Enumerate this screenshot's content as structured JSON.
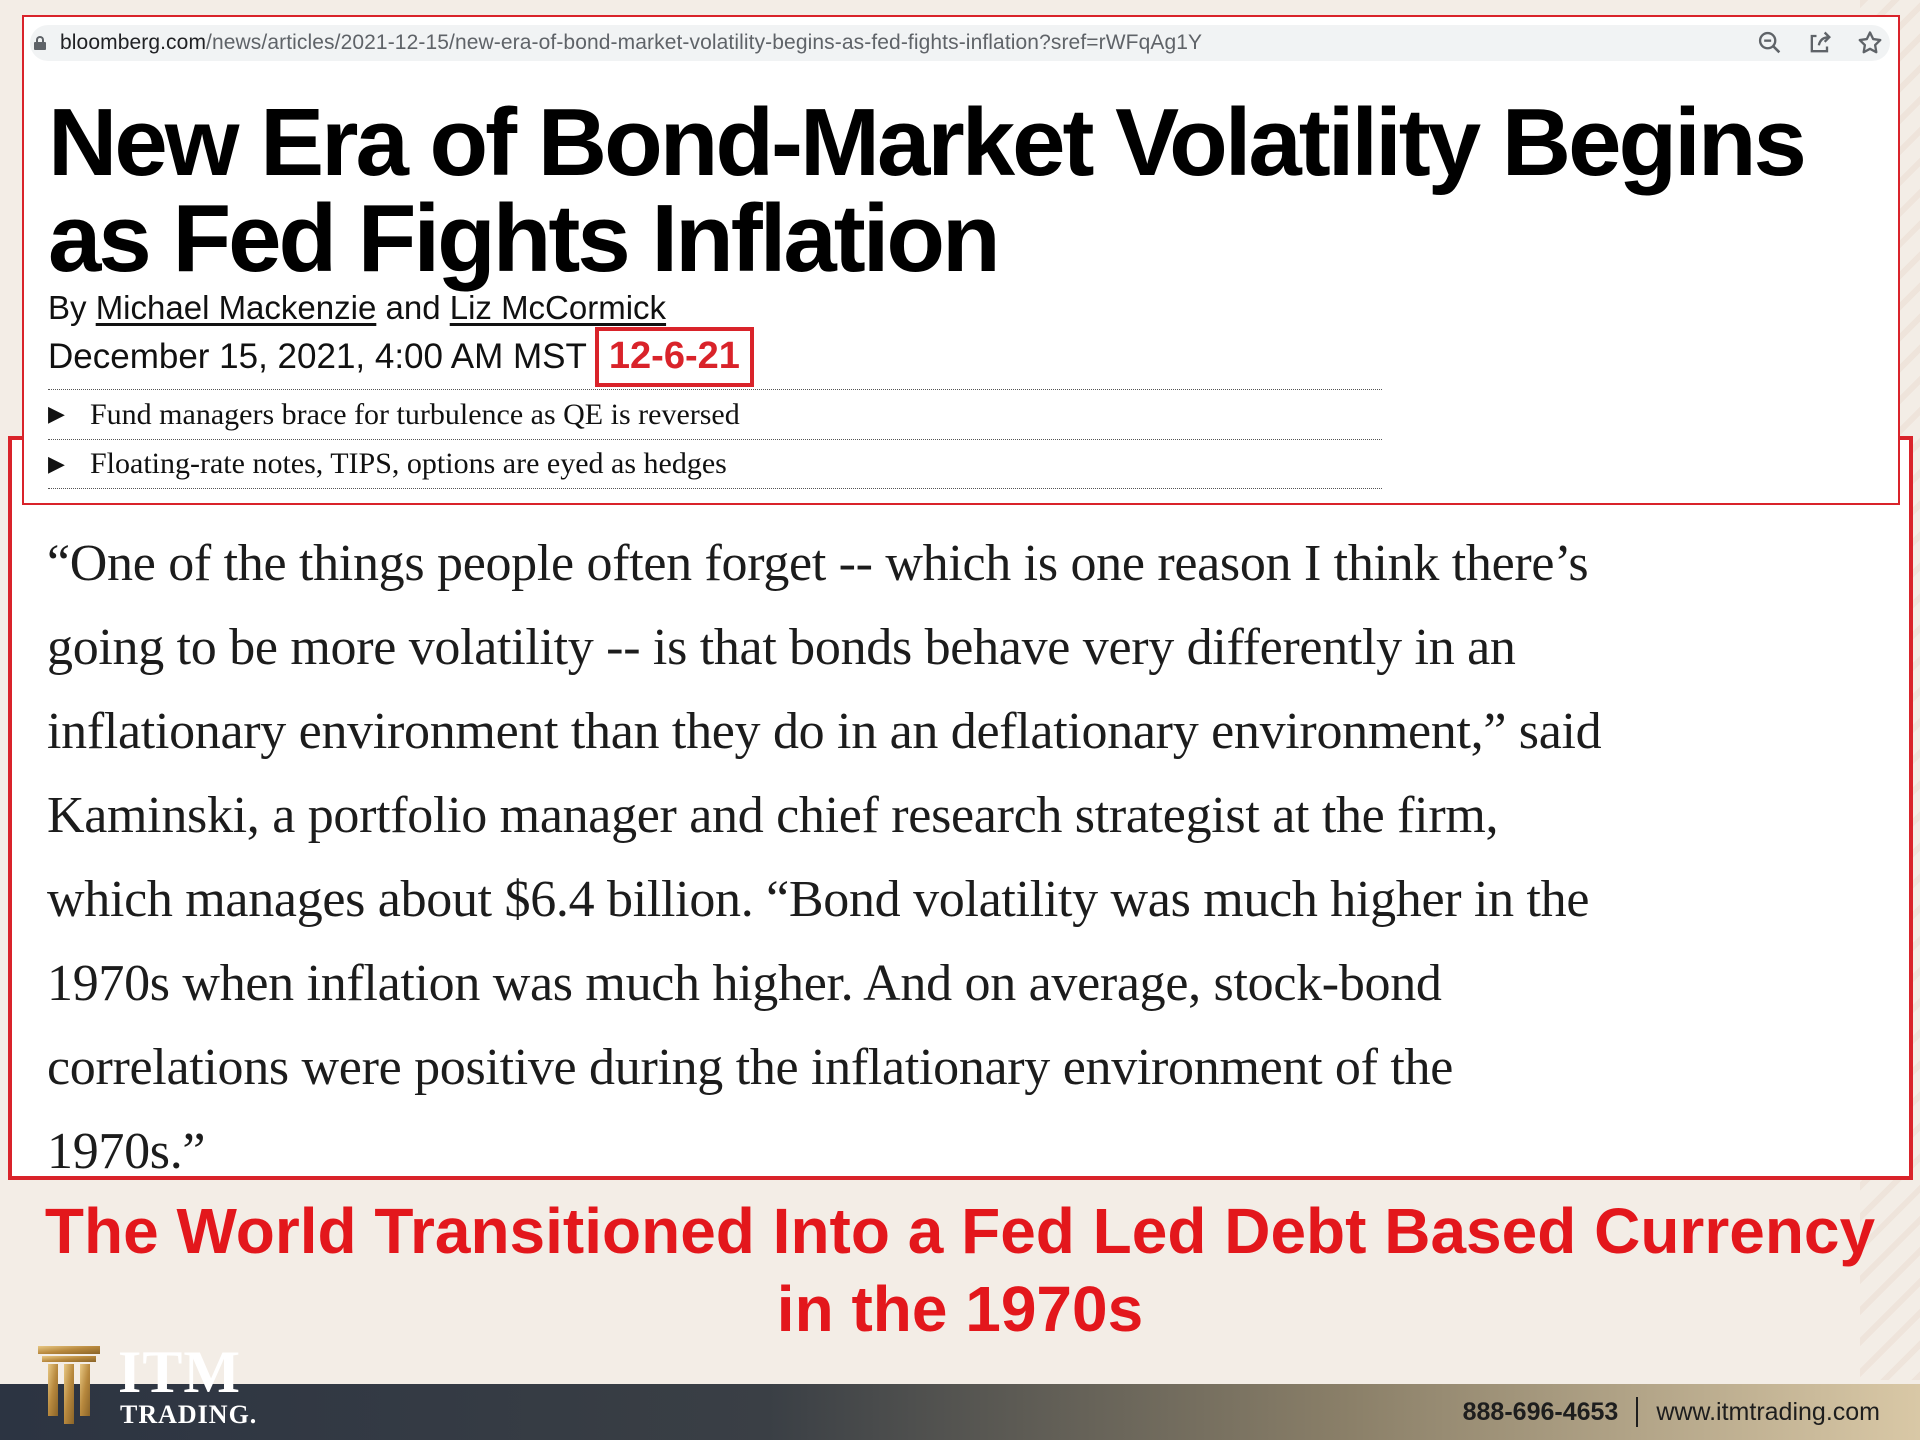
{
  "browser": {
    "url_domain": "bloomberg.com",
    "url_path": "/news/articles/2021-12-15/new-era-of-bond-market-volatility-begins-as-fed-fights-inflation?sref=rWFqAg1Y"
  },
  "article": {
    "headline_line1": "New Era of Bond-Market Volatility Begins",
    "headline_line2": "as Fed Fights Inflation",
    "byline_prefix": "By",
    "author1": "Michael Mackenzie",
    "byline_and": "and",
    "author2": "Liz McCormick",
    "date": "December 15, 2021, 4:00 AM MST",
    "date_badge": "12-6-21",
    "bullets": [
      "Fund managers brace for turbulence as QE is reversed",
      "Floating-rate notes, TIPS, options are eyed as hedges"
    ]
  },
  "quote": {
    "lines": [
      "“One of the things people often forget -- which is one reason I think there’s",
      "going to be more volatility -- is that bonds behave very differently in an",
      "inflationary environment than they do in an deflationary environment,” said",
      "Kaminski, a portfolio manager and chief research strategist at the firm,",
      "which manages about $6.4 billion. “Bond volatility was much higher in the",
      "1970s when inflation was much higher. And on average, stock-bond",
      "correlations were positive during the inflationary environment of the",
      "1970s.”"
    ]
  },
  "caption": {
    "line1": "The World Transitioned Into a Fed Led Debt Based Currency",
    "line2": "in the 1970s"
  },
  "footer": {
    "logo_word": "ITM",
    "logo_sub": "TRADING.",
    "phone": "888-696-4653",
    "website": "www.itmtrading.com"
  },
  "icons": {
    "lock": "lock-icon",
    "zoom": "zoom-out-icon",
    "share": "share-icon",
    "bookmark": "star-icon"
  },
  "colors": {
    "accent_red": "#d9232a",
    "caption_red": "#e3171c",
    "footer_dark": "#2c3442",
    "footer_gold": "#d9c8a6"
  }
}
